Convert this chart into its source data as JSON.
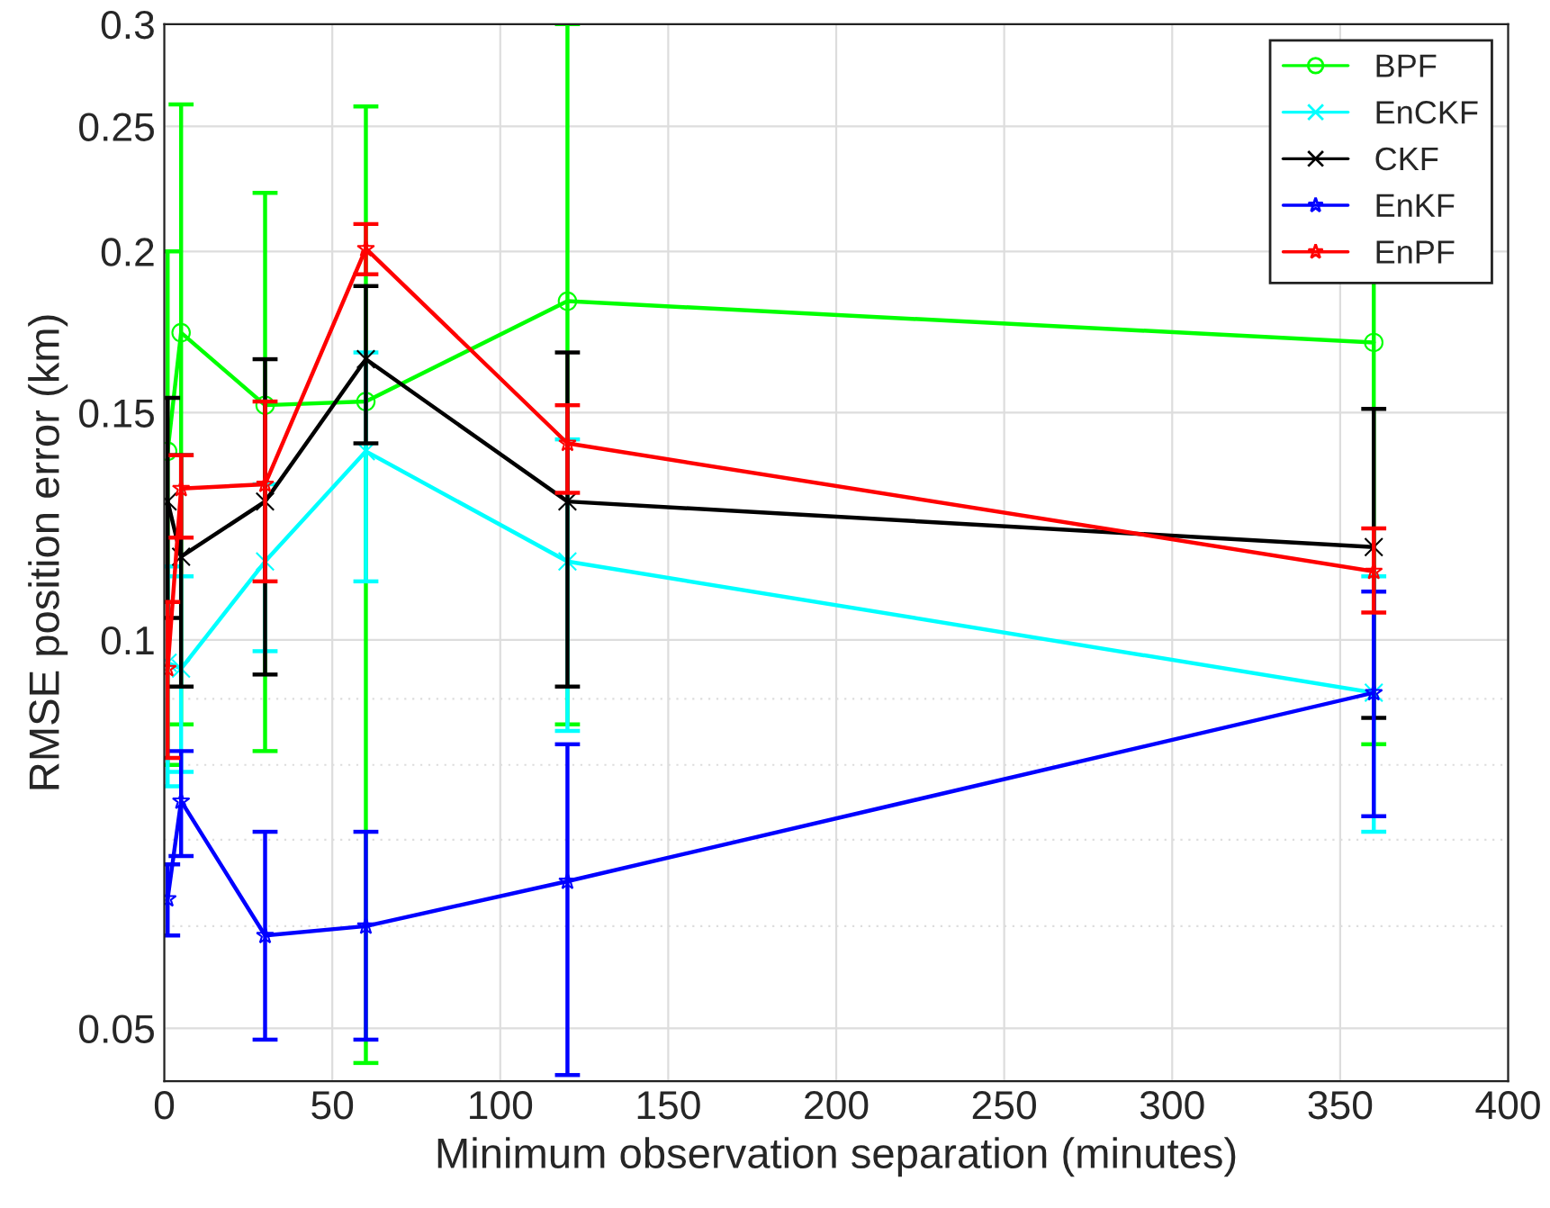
{
  "chart_data": {
    "type": "line",
    "xlabel": "Minimum observation separation (minutes)",
    "ylabel": "RMSE position error (km)",
    "x": [
      1,
      5,
      30,
      60,
      120,
      360
    ],
    "log": "y",
    "xlim": [
      0,
      400
    ],
    "ylim": [
      0.0455,
      0.3
    ],
    "xticks": [
      0,
      50,
      100,
      150,
      200,
      250,
      300,
      350,
      400
    ],
    "yticks": [
      0.05,
      0.1,
      0.15,
      0.2,
      0.25,
      0.3
    ],
    "grid": true,
    "legend": "top right",
    "series": [
      {
        "name": "BPF",
        "color": "#00ff00",
        "marker": "circle",
        "values": [
          0.14,
          0.173,
          0.152,
          0.153,
          0.183,
          0.17
        ],
        "errors": [
          [
            0.08,
            0.2
          ],
          [
            0.086,
            0.26
          ],
          [
            0.082,
            0.222
          ],
          [
            0.047,
            0.259
          ],
          [
            0.086,
            0.3
          ],
          [
            0.083,
            0.2
          ]
        ]
      },
      {
        "name": "EnCKF",
        "color": "#00ffff",
        "marker": "cross",
        "values": [
          0.096,
          0.095,
          0.115,
          0.14,
          0.115,
          0.091
        ],
        "errors": [
          [
            0.077,
            0.114
          ],
          [
            0.079,
            0.112
          ],
          [
            0.098,
            0.132
          ],
          [
            0.111,
            0.167
          ],
          [
            0.085,
            0.143
          ],
          [
            0.071,
            0.112
          ]
        ]
      },
      {
        "name": "CKF",
        "color": "#000000",
        "marker": "cross",
        "values": [
          0.128,
          0.116,
          0.128,
          0.165,
          0.128,
          0.118
        ],
        "errors": [
          [
            0.104,
            0.154
          ],
          [
            0.092,
            0.139
          ],
          [
            0.094,
            0.165
          ],
          [
            0.142,
            0.188
          ],
          [
            0.092,
            0.167
          ],
          [
            0.087,
            0.151
          ]
        ]
      },
      {
        "name": "EnKF",
        "color": "#0000ff",
        "marker": "star",
        "values": [
          0.063,
          0.075,
          0.059,
          0.06,
          0.065,
          0.091
        ],
        "errors": [
          [
            0.059,
            0.067
          ],
          [
            0.068,
            0.082
          ],
          [
            0.049,
            0.071
          ],
          [
            0.049,
            0.071
          ],
          [
            0.046,
            0.083
          ],
          [
            0.073,
            0.109
          ]
        ]
      },
      {
        "name": "EnPF",
        "color": "#ff0000",
        "marker": "star",
        "values": [
          0.095,
          0.131,
          0.132,
          0.201,
          0.142,
          0.113
        ],
        "errors": [
          [
            0.081,
            0.107
          ],
          [
            0.12,
            0.139
          ],
          [
            0.111,
            0.153
          ],
          [
            0.192,
            0.21
          ],
          [
            0.13,
            0.152
          ],
          [
            0.105,
            0.122
          ]
        ]
      }
    ]
  }
}
